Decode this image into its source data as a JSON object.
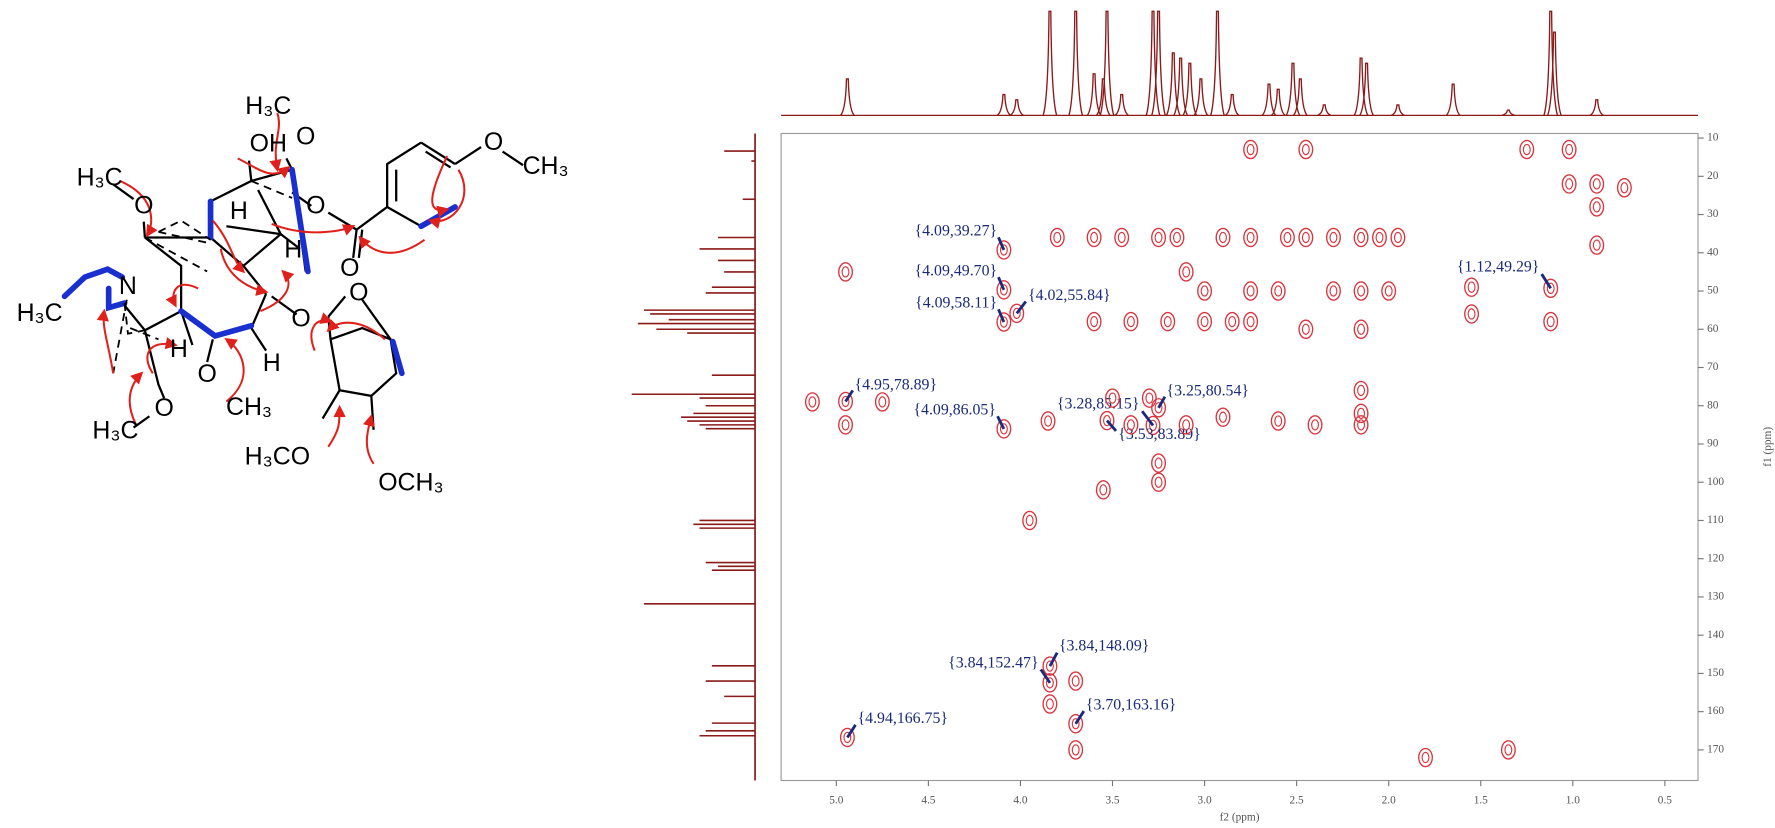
{
  "structure": {
    "labels": [
      "H₃C",
      "O",
      "OH",
      "O",
      "CH₃",
      "H₃C",
      "O",
      "H",
      "H",
      "O",
      "O",
      "N",
      "H₃C",
      "O",
      "O",
      "H",
      "H",
      "O",
      "CH₃",
      "H₃C",
      "O",
      "H₃CO",
      "OCH₃"
    ]
  },
  "chart_data": {
    "type": "scatter",
    "xlabel": "f2 (ppm)",
    "ylabel": "f1 (ppm)",
    "xlim": [
      5.3,
      0.32
    ],
    "ylim": [
      8.8,
      178
    ],
    "xticks": [
      {
        "value": 5,
        "label": "5.0"
      },
      4.5,
      {
        "value": 4,
        "label": "4.0"
      },
      3.5,
      {
        "value": 3,
        "label": "3.0"
      },
      2.5,
      {
        "value": 2,
        "label": "2.0"
      },
      1.5,
      {
        "value": 1,
        "label": "1.0"
      },
      0.5
    ],
    "yticks": [
      10,
      20,
      30,
      40,
      50,
      60,
      70,
      80,
      90,
      100,
      110,
      120,
      130,
      140,
      150,
      160,
      170
    ],
    "series": [
      {
        "color": "#d9363e",
        "x": [
          4.09,
          4.09,
          4.09,
          4.02,
          1.12,
          4.95,
          4.09,
          3.28,
          3.25,
          3.53,
          3.84,
          3.84,
          3.7,
          4.94
        ],
        "values": [
          39.27,
          49.7,
          58.11,
          55.84,
          49.29,
          78.89,
          86.05,
          85.15,
          80.54,
          83.89,
          148.09,
          152.47,
          163.16,
          166.75
        ],
        "value_labels": [
          "{4.09,39.27}",
          "{4.09,49.70}",
          "{4.09,58.11}",
          "{4.02,55.84}",
          "{1.12,49.29}",
          "{4.95,78.89}",
          "{4.09,86.05}",
          "{3.28,85.15}",
          "{3.25,80.54}",
          "{3.53,83.89}",
          "{3.84,148.09}",
          "{3.84,152.47}",
          "{3.70,163.16}",
          "{4.94,166.75}"
        ]
      },
      {
        "color": "#d9363e",
        "x": [
          3.8,
          3.6,
          3.45,
          3.25,
          3.15,
          2.9,
          2.75,
          2.55,
          2.45,
          2.3,
          2.15,
          2.05,
          1.95,
          3.1,
          3.0,
          2.75,
          2.6,
          2.3,
          2.15,
          2.0,
          3.6,
          3.4,
          3.2,
          3.0,
          2.85,
          2.75,
          2.45,
          2.15,
          3.3,
          3.5,
          2.15,
          2.15,
          3.1,
          2.9,
          2.6,
          2.4,
          2.15,
          4.75,
          5.13,
          4.95,
          3.85,
          3.4,
          3.25,
          3.25,
          3.55,
          3.95,
          1.25,
          1.02,
          2.45,
          2.75,
          0.87,
          0.72,
          0.87,
          0.87,
          1.02,
          1.8,
          1.35,
          3.7,
          3.84,
          3.7,
          4.95,
          1.12,
          1.55,
          1.55
        ],
        "values": [
          36,
          36,
          36,
          36,
          36,
          36,
          36,
          36,
          36,
          36,
          36,
          36,
          36,
          45,
          50,
          50,
          50,
          50,
          50,
          50,
          58,
          58,
          58,
          58,
          58,
          58,
          60,
          60,
          78,
          78,
          76,
          82,
          85,
          83,
          84,
          85,
          85,
          79,
          79,
          85,
          84,
          85,
          95,
          100,
          102,
          110,
          13,
          13,
          13,
          13,
          22,
          23,
          28,
          38,
          22,
          172,
          170,
          152,
          158,
          170,
          45,
          58,
          49,
          56
        ]
      }
    ],
    "projections": {
      "f2": {
        "color": "#8b1a1a",
        "x": [
          4.94,
          4.09,
          4.02,
          3.84,
          3.7,
          3.6,
          3.55,
          3.53,
          3.45,
          3.28,
          3.25,
          3.17,
          3.13,
          3.08,
          3.02,
          2.93,
          2.85,
          2.65,
          2.6,
          2.52,
          2.48,
          2.35,
          2.15,
          2.12,
          1.95,
          1.65,
          1.35,
          1.12,
          1.1,
          0.87
        ],
        "values": [
          35,
          20,
          15,
          100,
          100,
          40,
          35,
          100,
          20,
          100,
          100,
          60,
          55,
          50,
          35,
          100,
          20,
          30,
          25,
          50,
          35,
          10,
          55,
          50,
          10,
          30,
          5,
          100,
          80,
          15
        ]
      },
      "f1": {
        "color": "#8b1a1a",
        "x": [
          13.4,
          16,
          26,
          36,
          39,
          42,
          45,
          49,
          50.5,
          55,
          56,
          57.5,
          58.5,
          60,
          61,
          72,
          77,
          78,
          80,
          82,
          83,
          84,
          85,
          86,
          110,
          111,
          112,
          121,
          122,
          123,
          131.8,
          148,
          152,
          156,
          163,
          165,
          166.3
        ],
        "values": [
          25,
          3,
          10,
          30,
          45,
          30,
          25,
          35,
          40,
          90,
          85,
          70,
          95,
          80,
          55,
          35,
          100,
          45,
          40,
          50,
          60,
          55,
          45,
          40,
          45,
          50,
          45,
          40,
          30,
          35,
          90,
          35,
          40,
          25,
          35,
          40,
          45
        ]
      }
    }
  }
}
